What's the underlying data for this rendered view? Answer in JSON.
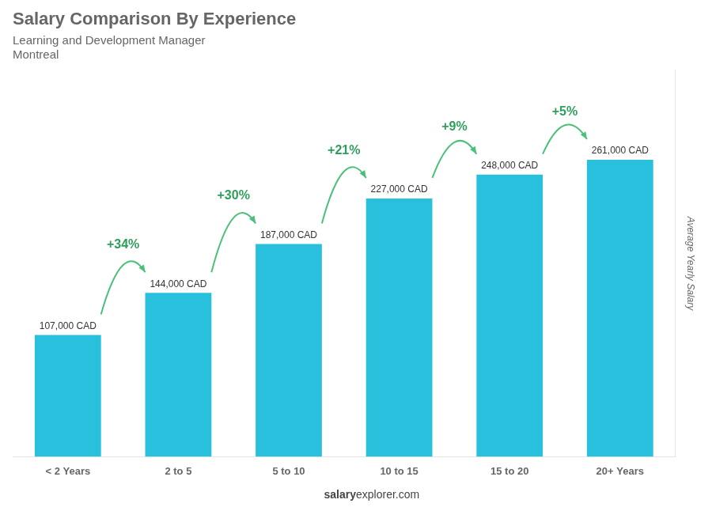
{
  "chart_data": {
    "type": "bar",
    "title": "Salary Comparison By Experience",
    "subtitle": [
      "Learning and Development Manager",
      "Montreal"
    ],
    "ylabel": "Average Yearly Salary",
    "categories": [
      "< 2 Years",
      "2 to 5",
      "5 to 10",
      "10 to 15",
      "15 to 20",
      "20+ Years"
    ],
    "values": [
      107000,
      144000,
      187000,
      227000,
      248000,
      261000
    ],
    "value_labels": [
      "107,000 CAD",
      "144,000 CAD",
      "187,000 CAD",
      "227,000 CAD",
      "248,000 CAD",
      "261,000 CAD"
    ],
    "data_labels": true,
    "annotations": [
      "+34%",
      "+30%",
      "+21%",
      "+9%",
      "+5%"
    ],
    "footer": [
      "salary",
      "explorer.com"
    ],
    "color": "#29c0de",
    "ylim": [
      0,
      340000
    ],
    "grid": false,
    "tick_labels": "x"
  }
}
